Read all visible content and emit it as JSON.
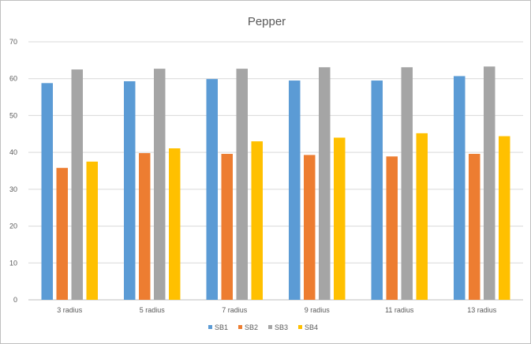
{
  "chart_data": {
    "type": "bar",
    "title": "Pepper",
    "xlabel": "",
    "ylabel": "",
    "ylim": [
      0,
      70
    ],
    "yticks": [
      0,
      10,
      20,
      30,
      40,
      50,
      60,
      70
    ],
    "grid": true,
    "legend_position": "bottom",
    "categories": [
      "3 radius",
      "5 radius",
      "7 radius",
      "9 radius",
      "11 radius",
      "13 radius"
    ],
    "series": [
      {
        "name": "SB1",
        "color": "#5b9bd5",
        "values": [
          58.8,
          59.3,
          59.9,
          59.5,
          59.5,
          60.7
        ]
      },
      {
        "name": "SB2",
        "color": "#ed7d31",
        "values": [
          35.8,
          39.8,
          39.6,
          39.3,
          38.9,
          39.6
        ]
      },
      {
        "name": "SB3",
        "color": "#a5a5a5",
        "values": [
          62.5,
          62.7,
          62.7,
          63.1,
          63.1,
          63.3
        ]
      },
      {
        "name": "SB4",
        "color": "#ffc000",
        "values": [
          37.5,
          41.1,
          43.0,
          44.0,
          45.2,
          44.4
        ]
      }
    ]
  }
}
